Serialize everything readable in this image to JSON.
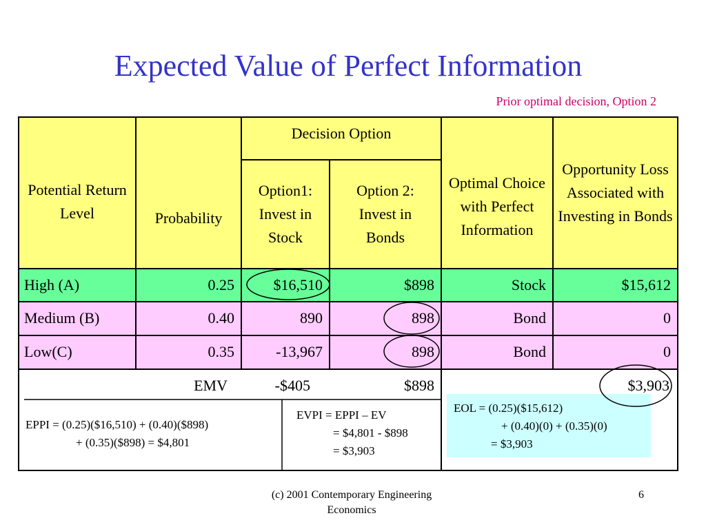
{
  "title": "Expected Value of Perfect Information",
  "note": "Prior optimal decision, Option 2",
  "table": {
    "header": {
      "level": "Potential Return Level",
      "probability": "Probability",
      "decision_option": "Decision Option",
      "option1": "Option1: Invest in Stock",
      "option2": "Option 2: Invest in Bonds",
      "optimal": "Optimal Choice with Perfect Information",
      "loss": "Opportunity Loss Associated with Investing in Bonds"
    },
    "rows": [
      [
        "High (A)",
        "0.25",
        "$16,510",
        "$898",
        "Stock",
        "$15,612"
      ],
      [
        "Medium (B)",
        "0.40",
        "890",
        "898",
        "Bond",
        "0"
      ],
      [
        "Low(C)",
        "0.35",
        "-13,967",
        "898",
        "Bond",
        "0"
      ]
    ],
    "emv": {
      "label": "EMV",
      "option1": "-$405",
      "option2": "$898",
      "eol": "$3,903"
    }
  },
  "eppi": [
    "EPPI = (0.25)($16,510) + (0.40)($898)",
    "+ (0.35)($898) = $4,801"
  ],
  "evpi": [
    "EVPI = EPPI – EV",
    "= $4,801 - $898",
    "= $3,903"
  ],
  "eol": [
    "EOL = (0.25)($15,612)",
    "+ (0.40)(0) + (0.35)(0)",
    "= $3,903"
  ],
  "footer": {
    "text": "(c) 2001 Contemporary Engineering Economics",
    "page": "6"
  }
}
